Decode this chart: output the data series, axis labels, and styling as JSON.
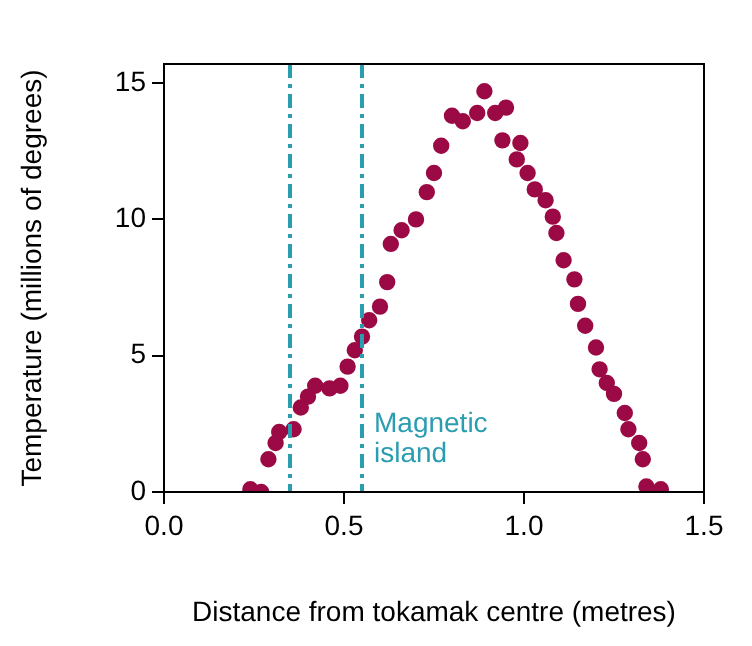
{
  "chart_data": {
    "type": "scatter",
    "xlabel": "Distance from tokamak centre (metres)",
    "ylabel": "Temperature (millions of degrees)",
    "xlim": [
      0,
      1.5
    ],
    "xticks": [
      {
        "value": 0,
        "label": "0.0"
      },
      0.5,
      {
        "value": 1,
        "label": "1.0"
      },
      1.5
    ],
    "ylim": [
      0,
      15.7
    ],
    "yticks": [
      0,
      5,
      10,
      15
    ],
    "grid": false,
    "legend": false,
    "marker": "circle",
    "series": [
      {
        "color": "#9b0a45",
        "x": [
          0.24,
          0.27,
          0.29,
          0.31,
          0.32,
          0.36,
          0.38,
          0.4,
          0.42,
          0.46,
          0.49,
          0.51,
          0.53,
          0.55,
          0.57,
          0.6,
          0.62,
          0.63,
          0.66,
          0.7,
          0.73,
          0.75,
          0.77,
          0.8,
          0.83,
          0.87,
          0.89,
          0.92,
          0.95,
          0.94,
          0.99,
          0.98,
          1.01,
          1.03,
          1.06,
          1.08,
          1.09,
          1.11,
          1.14,
          1.15,
          1.17,
          1.2,
          1.21,
          1.23,
          1.25,
          1.28,
          1.29,
          1.32,
          1.33,
          1.34,
          1.38
        ],
        "values": [
          0.1,
          0,
          1.2,
          1.8,
          2.2,
          2.3,
          3.1,
          3.5,
          3.9,
          3.8,
          3.9,
          4.6,
          5.2,
          5.7,
          6.3,
          6.8,
          7.7,
          9.1,
          9.6,
          10.0,
          11.0,
          11.7,
          12.7,
          13.8,
          13.6,
          13.9,
          14.7,
          13.9,
          14.1,
          12.9,
          12.8,
          12.2,
          11.7,
          11.1,
          10.7,
          10.1,
          9.5,
          8.5,
          7.8,
          6.9,
          6.1,
          5.3,
          4.5,
          4.0,
          3.6,
          2.9,
          2.3,
          1.8,
          1.2,
          0.2,
          0.1
        ]
      }
    ],
    "ref_lines": [
      {
        "axis": "x",
        "value": 0.35,
        "color": "#2a9db0",
        "line_style": "dashdot"
      },
      {
        "axis": "x",
        "value": 0.55,
        "color": "#2a9db0",
        "line_style": "dashdot",
        "label": "Magnetic\nisland"
      }
    ]
  }
}
